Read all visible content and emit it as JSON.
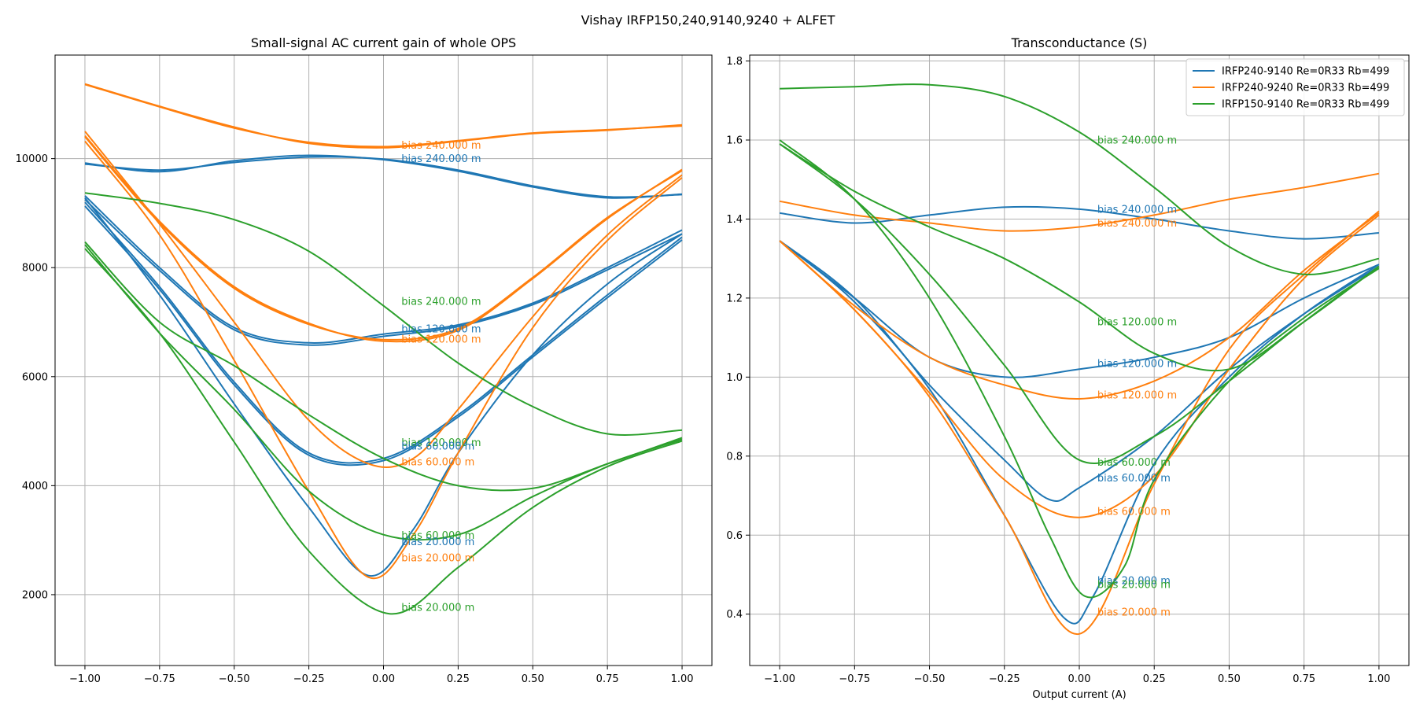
{
  "suptitle": "Vishay IRFP150,240,9140,9240 + ALFET",
  "colors": {
    "IRFP240-9140": "#1f77b4",
    "IRFP240-9240": "#ff7f0e",
    "IRFP150-9140": "#2ca02c"
  },
  "chart_data": [
    {
      "type": "line",
      "title": "Small-signal AC current gain of whole OPS",
      "xlabel": "",
      "ylabel": "",
      "xlim": [
        -1.1,
        1.1
      ],
      "ylim": [
        700,
        11900
      ],
      "xticks": [
        -1.0,
        -0.75,
        -0.5,
        -0.25,
        0.0,
        0.25,
        0.5,
        0.75,
        1.0
      ],
      "xtick_labels": [
        "−1.00",
        "−0.75",
        "−0.50",
        "−0.25",
        "0.00",
        "0.25",
        "0.50",
        "0.75",
        "1.00"
      ],
      "yticks": [
        2000,
        4000,
        6000,
        8000,
        10000
      ],
      "ytick_labels": [
        "2000",
        "4000",
        "6000",
        "8000",
        "10000"
      ],
      "grid": true,
      "series": [
        {
          "group": "IRFP240-9140",
          "bias": "240",
          "x": [
            -1.0,
            -0.75,
            -0.5,
            -0.25,
            0.0,
            0.25,
            0.5,
            0.75,
            1.0
          ],
          "y": [
            9920,
            9760,
            9960,
            10060,
            9980,
            9770,
            9480,
            9280,
            9350
          ]
        },
        {
          "group": "IRFP240-9140",
          "bias": "240",
          "x": [
            -1.0,
            -0.75,
            -0.5,
            -0.25,
            0.0,
            0.25,
            0.5,
            0.75,
            1.0
          ],
          "y": [
            9900,
            9790,
            9930,
            10030,
            9990,
            9790,
            9500,
            9300,
            9340
          ]
        },
        {
          "group": "IRFP240-9140",
          "bias": "120",
          "x": [
            -1.0,
            -0.75,
            -0.5,
            -0.25,
            0.0,
            0.25,
            0.5,
            0.75,
            1.0
          ],
          "y": [
            9320,
            8000,
            6900,
            6620,
            6780,
            6950,
            7350,
            8000,
            8690
          ]
        },
        {
          "group": "IRFP240-9140",
          "bias": "120",
          "x": [
            -1.0,
            -0.75,
            -0.5,
            -0.25,
            0.0,
            0.25,
            0.5,
            0.75,
            1.0
          ],
          "y": [
            9250,
            7950,
            6860,
            6580,
            6740,
            6920,
            7320,
            7960,
            8620
          ]
        },
        {
          "group": "IRFP240-9140",
          "bias": "60",
          "x": [
            -1.0,
            -0.75,
            -0.5,
            -0.25,
            0.0,
            0.25,
            0.5,
            0.75,
            1.0
          ],
          "y": [
            9200,
            7650,
            5900,
            4600,
            4500,
            5300,
            6400,
            7500,
            8560
          ]
        },
        {
          "group": "IRFP240-9140",
          "bias": "60",
          "x": [
            -1.0,
            -0.75,
            -0.5,
            -0.25,
            0.0,
            0.25,
            0.5,
            0.75,
            1.0
          ],
          "y": [
            9130,
            7600,
            5850,
            4560,
            4460,
            5260,
            6360,
            7450,
            8510
          ]
        },
        {
          "group": "IRFP240-9140",
          "bias": "20",
          "x": [
            -1.0,
            -0.75,
            -0.5,
            -0.25,
            -0.05,
            0.1,
            0.25,
            0.5,
            0.75,
            1.0
          ],
          "y": [
            9280,
            7500,
            5500,
            3600,
            2350,
            3200,
            4600,
            6400,
            7700,
            8620
          ]
        },
        {
          "group": "IRFP240-9240",
          "bias": "240",
          "x": [
            -1.0,
            -0.75,
            -0.5,
            -0.25,
            0.0,
            0.25,
            0.5,
            0.75,
            1.0
          ],
          "y": [
            11370,
            10960,
            10580,
            10280,
            10200,
            10320,
            10460,
            10520,
            10620
          ]
        },
        {
          "group": "IRFP240-9240",
          "bias": "240",
          "x": [
            -1.0,
            -0.75,
            -0.5,
            -0.25,
            0.0,
            0.25,
            0.5,
            0.75,
            1.0
          ],
          "y": [
            11360,
            10950,
            10560,
            10300,
            10220,
            10330,
            10470,
            10530,
            10600
          ]
        },
        {
          "group": "IRFP240-9240",
          "bias": "120",
          "x": [
            -1.0,
            -0.75,
            -0.5,
            -0.25,
            0.0,
            0.25,
            0.5,
            0.75,
            1.0
          ],
          "y": [
            10420,
            8850,
            7650,
            6980,
            6650,
            6850,
            7800,
            8900,
            9800
          ]
        },
        {
          "group": "IRFP240-9240",
          "bias": "120",
          "x": [
            -1.0,
            -0.75,
            -0.5,
            -0.25,
            0.0,
            0.25,
            0.5,
            0.75,
            1.0
          ],
          "y": [
            10400,
            8820,
            7620,
            6960,
            6680,
            6880,
            7820,
            8920,
            9780
          ]
        },
        {
          "group": "IRFP240-9240",
          "bias": "60",
          "x": [
            -1.0,
            -0.75,
            -0.5,
            -0.25,
            -0.05,
            0.1,
            0.25,
            0.5,
            0.75,
            1.0
          ],
          "y": [
            10500,
            8800,
            7000,
            5200,
            4400,
            4500,
            5400,
            7100,
            8600,
            9700
          ]
        },
        {
          "group": "IRFP240-9240",
          "bias": "20",
          "x": [
            -1.0,
            -0.75,
            -0.5,
            -0.25,
            -0.05,
            0.1,
            0.25,
            0.5,
            0.75,
            1.0
          ],
          "y": [
            10320,
            8600,
            6300,
            3900,
            2320,
            3100,
            4600,
            6900,
            8500,
            9650
          ]
        },
        {
          "group": "IRFP150-9140",
          "bias": "240",
          "x": [
            -1.0,
            -0.75,
            -0.5,
            -0.25,
            0.0,
            0.25,
            0.5,
            0.75,
            1.0
          ],
          "y": [
            9370,
            9180,
            8880,
            8300,
            7300,
            6250,
            5450,
            4950,
            5020
          ]
        },
        {
          "group": "IRFP150-9140",
          "bias": "120",
          "x": [
            -1.0,
            -0.75,
            -0.5,
            -0.25,
            0.0,
            0.25,
            0.5,
            0.75,
            1.0
          ],
          "y": [
            8470,
            7000,
            6200,
            5300,
            4500,
            4000,
            3950,
            4400,
            4880
          ]
        },
        {
          "group": "IRFP150-9140",
          "bias": "60",
          "x": [
            -1.0,
            -0.75,
            -0.5,
            -0.25,
            0.0,
            0.25,
            0.5,
            0.75,
            1.0
          ],
          "y": [
            8420,
            6800,
            5400,
            3900,
            3100,
            3100,
            3800,
            4400,
            4850
          ]
        },
        {
          "group": "IRFP150-9140",
          "bias": "20",
          "x": [
            -1.0,
            -0.75,
            -0.5,
            -0.25,
            0.02,
            0.25,
            0.5,
            0.75,
            1.0
          ],
          "y": [
            8350,
            6800,
            4800,
            2800,
            1650,
            2500,
            3600,
            4350,
            4820
          ]
        }
      ],
      "annotations": [
        {
          "text": "bias 240.000 m",
          "group": "IRFP240-9240",
          "x": 0.06,
          "y": 10250
        },
        {
          "text": "bias 240.000 m",
          "group": "IRFP240-9140",
          "x": 0.06,
          "y": 10000
        },
        {
          "text": "bias 240.000 m",
          "group": "IRFP150-9140",
          "x": 0.06,
          "y": 7380
        },
        {
          "text": "bias 120.000 m",
          "group": "IRFP240-9140",
          "x": 0.06,
          "y": 6880
        },
        {
          "text": "bias 120.000 m",
          "group": "IRFP240-9240",
          "x": 0.06,
          "y": 6690
        },
        {
          "text": "bias 120.000 m",
          "group": "IRFP150-9140",
          "x": 0.06,
          "y": 4790
        },
        {
          "text": "bias 60.000 m",
          "group": "IRFP240-9140",
          "x": 0.06,
          "y": 4730
        },
        {
          "text": "bias 60.000 m",
          "group": "IRFP240-9240",
          "x": 0.06,
          "y": 4440
        },
        {
          "text": "bias 60.000 m",
          "group": "IRFP150-9140",
          "x": 0.06,
          "y": 3090
        },
        {
          "text": "bias 20.000 m",
          "group": "IRFP240-9140",
          "x": 0.06,
          "y": 2970
        },
        {
          "text": "bias 20.000 m",
          "group": "IRFP240-9240",
          "x": 0.06,
          "y": 2680
        },
        {
          "text": "bias 20.000 m",
          "group": "IRFP150-9140",
          "x": 0.06,
          "y": 1770
        }
      ]
    },
    {
      "type": "line",
      "title": "Transconductance (S)",
      "xlabel": "Output current (A)",
      "ylabel": "",
      "xlim": [
        -1.1,
        1.1
      ],
      "ylim": [
        0.27,
        1.815
      ],
      "xticks": [
        -1.0,
        -0.75,
        -0.5,
        -0.25,
        0.0,
        0.25,
        0.5,
        0.75,
        1.0
      ],
      "xtick_labels": [
        "−1.00",
        "−0.75",
        "−0.50",
        "−0.25",
        "0.00",
        "0.25",
        "0.50",
        "0.75",
        "1.00"
      ],
      "yticks": [
        0.4,
        0.6,
        0.8,
        1.0,
        1.2,
        1.4,
        1.6,
        1.8
      ],
      "ytick_labels": [
        "0.4",
        "0.6",
        "0.8",
        "1.0",
        "1.2",
        "1.4",
        "1.6",
        "1.8"
      ],
      "grid": true,
      "legend": {
        "position": "upper-right",
        "entries": [
          {
            "label": "IRFP240-9140 Re=0R33 Rb=499",
            "group": "IRFP240-9140"
          },
          {
            "label": "IRFP240-9240 Re=0R33 Rb=499",
            "group": "IRFP240-9240"
          },
          {
            "label": "IRFP150-9140 Re=0R33 Rb=499",
            "group": "IRFP150-9140"
          }
        ]
      },
      "series": [
        {
          "group": "IRFP240-9140",
          "bias": "240",
          "x": [
            -1.0,
            -0.75,
            -0.5,
            -0.25,
            0.0,
            0.25,
            0.5,
            0.75,
            1.0
          ],
          "y": [
            1.415,
            1.39,
            1.41,
            1.43,
            1.425,
            1.4,
            1.37,
            1.35,
            1.365
          ]
        },
        {
          "group": "IRFP240-9140",
          "bias": "120",
          "x": [
            -1.0,
            -0.75,
            -0.5,
            -0.25,
            0.0,
            0.25,
            0.5,
            0.75,
            1.0
          ],
          "y": [
            1.345,
            1.2,
            1.05,
            1.0,
            1.02,
            1.05,
            1.1,
            1.2,
            1.285
          ]
        },
        {
          "group": "IRFP240-9140",
          "bias": "60",
          "x": [
            -1.0,
            -0.75,
            -0.5,
            -0.25,
            -0.1,
            0.0,
            0.25,
            0.5,
            0.75,
            1.0
          ],
          "y": [
            1.345,
            1.2,
            0.98,
            0.79,
            0.69,
            0.72,
            0.85,
            1.02,
            1.16,
            1.28
          ]
        },
        {
          "group": "IRFP240-9140",
          "bias": "20",
          "x": [
            -1.0,
            -0.75,
            -0.5,
            -0.25,
            -0.05,
            0.05,
            0.25,
            0.5,
            0.75,
            1.0
          ],
          "y": [
            1.345,
            1.19,
            0.97,
            0.65,
            0.39,
            0.45,
            0.78,
            1.0,
            1.16,
            1.285
          ]
        },
        {
          "group": "IRFP240-9240",
          "bias": "240",
          "x": [
            -1.0,
            -0.75,
            -0.5,
            -0.25,
            0.0,
            0.25,
            0.5,
            0.75,
            1.0
          ],
          "y": [
            1.445,
            1.41,
            1.39,
            1.37,
            1.38,
            1.41,
            1.45,
            1.48,
            1.515
          ]
        },
        {
          "group": "IRFP240-9240",
          "bias": "120",
          "x": [
            -1.0,
            -0.75,
            -0.5,
            -0.25,
            0.0,
            0.25,
            0.5,
            0.75,
            1.0
          ],
          "y": [
            1.345,
            1.18,
            1.05,
            0.98,
            0.945,
            0.99,
            1.1,
            1.27,
            1.415
          ]
        },
        {
          "group": "IRFP240-9240",
          "bias": "60",
          "x": [
            -1.0,
            -0.75,
            -0.5,
            -0.25,
            0.0,
            0.25,
            0.5,
            0.75,
            1.0
          ],
          "y": [
            1.345,
            1.17,
            0.96,
            0.74,
            0.645,
            0.75,
            1.02,
            1.25,
            1.41
          ]
        },
        {
          "group": "IRFP240-9240",
          "bias": "20",
          "x": [
            -1.0,
            -0.75,
            -0.5,
            -0.25,
            0.0,
            0.25,
            0.5,
            0.75,
            1.0
          ],
          "y": [
            1.345,
            1.17,
            0.95,
            0.65,
            0.35,
            0.73,
            1.07,
            1.26,
            1.42
          ]
        },
        {
          "group": "IRFP150-9140",
          "bias": "240",
          "x": [
            -1.0,
            -0.75,
            -0.5,
            -0.25,
            0.0,
            0.25,
            0.5,
            0.75,
            1.0
          ],
          "y": [
            1.73,
            1.735,
            1.74,
            1.71,
            1.62,
            1.48,
            1.33,
            1.26,
            1.3
          ]
        },
        {
          "group": "IRFP150-9140",
          "bias": "120",
          "x": [
            -1.0,
            -0.75,
            -0.5,
            -0.25,
            0.0,
            0.25,
            0.5,
            0.75,
            1.0
          ],
          "y": [
            1.59,
            1.47,
            1.38,
            1.3,
            1.19,
            1.06,
            1.02,
            1.14,
            1.28
          ]
        },
        {
          "group": "IRFP150-9140",
          "bias": "60",
          "x": [
            -1.0,
            -0.75,
            -0.5,
            -0.25,
            0.0,
            0.25,
            0.5,
            0.75,
            1.0
          ],
          "y": [
            1.59,
            1.45,
            1.26,
            1.03,
            0.79,
            0.85,
            0.99,
            1.14,
            1.28
          ]
        },
        {
          "group": "IRFP150-9140",
          "bias": "20",
          "x": [
            -1.0,
            -0.75,
            -0.5,
            -0.25,
            -0.1,
            0.02,
            0.15,
            0.25,
            0.5,
            0.75,
            1.0
          ],
          "y": [
            1.6,
            1.45,
            1.2,
            0.85,
            0.6,
            0.445,
            0.52,
            0.74,
            0.99,
            1.15,
            1.275
          ]
        }
      ],
      "annotations": [
        {
          "text": "bias 240.000 m",
          "group": "IRFP150-9140",
          "x": 0.06,
          "y": 1.6
        },
        {
          "text": "bias 240.000 m",
          "group": "IRFP240-9140",
          "x": 0.06,
          "y": 1.425
        },
        {
          "text": "bias 240.000 m",
          "group": "IRFP240-9240",
          "x": 0.06,
          "y": 1.39
        },
        {
          "text": "bias 120.000 m",
          "group": "IRFP150-9140",
          "x": 0.06,
          "y": 1.14
        },
        {
          "text": "bias 120.000 m",
          "group": "IRFP240-9140",
          "x": 0.06,
          "y": 1.035
        },
        {
          "text": "bias 120.000 m",
          "group": "IRFP240-9240",
          "x": 0.06,
          "y": 0.955
        },
        {
          "text": "bias 60.000 m",
          "group": "IRFP150-9140",
          "x": 0.06,
          "y": 0.785
        },
        {
          "text": "bias 60.000 m",
          "group": "IRFP240-9140",
          "x": 0.06,
          "y": 0.745
        },
        {
          "text": "bias 60.000 m",
          "group": "IRFP240-9240",
          "x": 0.06,
          "y": 0.66
        },
        {
          "text": "bias 20.000 m",
          "group": "IRFP240-9140",
          "x": 0.06,
          "y": 0.485
        },
        {
          "text": "bias 20.000 m",
          "group": "IRFP150-9140",
          "x": 0.06,
          "y": 0.475
        },
        {
          "text": "bias 20.000 m",
          "group": "IRFP240-9240",
          "x": 0.06,
          "y": 0.405
        }
      ]
    }
  ]
}
